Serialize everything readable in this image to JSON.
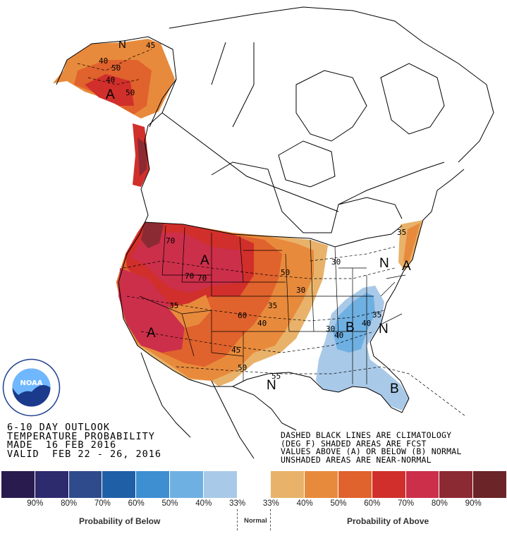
{
  "outlook": {
    "line1": "6-10 DAY OUTLOOK",
    "line2": "TEMPERATURE PROBABILITY",
    "line3": "MADE  16 FEB 2016",
    "line4": "VALID  FEB 22 - 26, 2016"
  },
  "notes": {
    "line1": "DASHED BLACK LINES ARE CLIMATOLOGY",
    "line2": "(DEG F) SHADED AREAS ARE FCST",
    "line3": "VALUES ABOVE (A) OR BELOW (B) NORMAL",
    "line4": "UNSHADED AREAS ARE NEAR-NORMAL"
  },
  "logo": {
    "name": "NOAA",
    "ring_text": "NATIONAL OCEANIC AND ATMOSPHERIC ADMINISTRATION · U.S. DEPARTMENT OF COMMERCE"
  },
  "legend": {
    "colors": [
      "#2a1b4e",
      "#2d2a6e",
      "#2f4b8c",
      "#1f5fa6",
      "#3d8fd1",
      "#6fb0e2",
      "#a9c9e8",
      "#ffffff",
      "#e8b26a",
      "#e88a3c",
      "#e0622d",
      "#d12f2b",
      "#cc2f4a",
      "#8c2a33",
      "#6b2427"
    ],
    "ticks": [
      "90%",
      "80%",
      "70%",
      "60%",
      "50%",
      "40%",
      "33%",
      "33%",
      "40%",
      "50%",
      "60%",
      "70%",
      "80%",
      "90%"
    ],
    "below_title": "Probability of Below",
    "normal_title": "Normal",
    "above_title": "Probability of Above"
  },
  "map_labels": {
    "category": [
      "A",
      "A",
      "A",
      "A",
      "B",
      "B",
      "N",
      "N",
      "N",
      "N"
    ],
    "probability": [
      "40",
      "45",
      "50",
      "40",
      "50",
      "70",
      "70",
      "70",
      "50",
      "60",
      "40",
      "35",
      "45",
      "35",
      "30",
      "50",
      "35",
      "30",
      "40",
      "40",
      "35",
      "30",
      "55"
    ]
  }
}
